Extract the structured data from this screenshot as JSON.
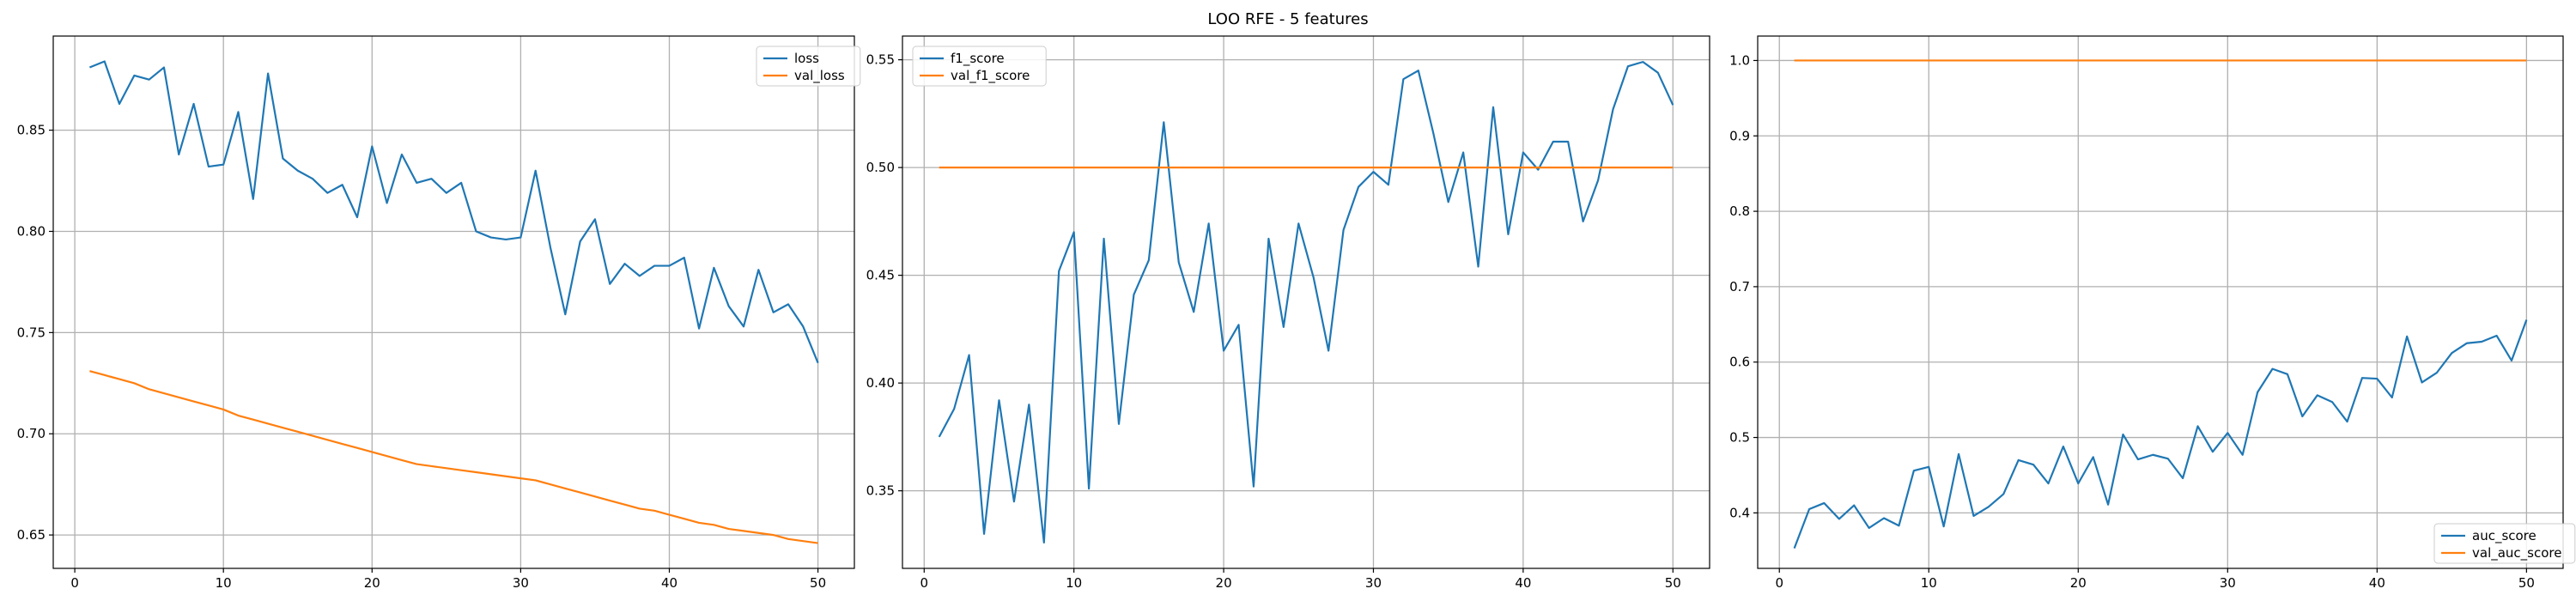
{
  "figure": {
    "title": "LOO RFE - 5 features"
  },
  "colors": {
    "series_1": "#1f77b4",
    "series_2": "#ff7f0e",
    "grid": "#b0b0b0",
    "axes": "#000000"
  },
  "chart_data": [
    {
      "type": "line",
      "title": "",
      "xlabel": "",
      "ylabel": "",
      "xlim": [
        -1.45,
        52.45
      ],
      "ylim": [
        0.6335,
        0.8965
      ],
      "xticks": [
        0,
        10,
        20,
        30,
        40,
        50
      ],
      "yticks": [
        0.65,
        0.7,
        0.75,
        0.8,
        0.85
      ],
      "ytick_labels": [
        "0.65",
        "0.70",
        "0.75",
        "0.80",
        "0.85"
      ],
      "grid": true,
      "legend_position": "upper right",
      "x": [
        1,
        2,
        3,
        4,
        5,
        6,
        7,
        8,
        9,
        10,
        11,
        12,
        13,
        14,
        15,
        16,
        17,
        18,
        19,
        20,
        21,
        22,
        23,
        24,
        25,
        26,
        27,
        28,
        29,
        30,
        31,
        32,
        33,
        34,
        35,
        36,
        37,
        38,
        39,
        40,
        41,
        42,
        43,
        44,
        45,
        46,
        47,
        48,
        49,
        50
      ],
      "series": [
        {
          "name": "loss",
          "values": [
            0.881,
            0.884,
            0.863,
            0.877,
            0.875,
            0.881,
            0.838,
            0.863,
            0.832,
            0.833,
            0.859,
            0.816,
            0.878,
            0.836,
            0.83,
            0.826,
            0.819,
            0.823,
            0.807,
            0.842,
            0.814,
            0.838,
            0.824,
            0.826,
            0.819,
            0.824,
            0.8,
            0.797,
            0.796,
            0.797,
            0.83,
            0.792,
            0.759,
            0.795,
            0.806,
            0.774,
            0.784,
            0.778,
            0.783,
            0.783,
            0.787,
            0.752,
            0.782,
            0.763,
            0.753,
            0.781,
            0.76,
            0.764,
            0.753,
            0.735
          ]
        },
        {
          "name": "val_loss",
          "values": [
            0.731,
            0.729,
            0.727,
            0.725,
            0.722,
            0.72,
            0.718,
            0.716,
            0.714,
            0.712,
            0.709,
            0.707,
            0.705,
            0.703,
            0.701,
            0.699,
            0.697,
            0.695,
            0.693,
            0.691,
            0.689,
            0.687,
            0.685,
            0.684,
            0.683,
            0.682,
            0.681,
            0.68,
            0.679,
            0.678,
            0.677,
            0.675,
            0.673,
            0.671,
            0.669,
            0.667,
            0.665,
            0.663,
            0.662,
            0.66,
            0.658,
            0.656,
            0.655,
            0.653,
            0.652,
            0.651,
            0.65,
            0.648,
            0.647,
            0.646
          ]
        }
      ]
    },
    {
      "type": "line",
      "title": "",
      "xlabel": "",
      "ylabel": "",
      "xlim": [
        -1.45,
        52.45
      ],
      "ylim": [
        0.314,
        0.561
      ],
      "xticks": [
        0,
        10,
        20,
        30,
        40,
        50
      ],
      "yticks": [
        0.35,
        0.4,
        0.45,
        0.5,
        0.55
      ],
      "ytick_labels": [
        "0.35",
        "0.40",
        "0.45",
        "0.50",
        "0.55"
      ],
      "grid": true,
      "legend_position": "upper left",
      "x": [
        1,
        2,
        3,
        4,
        5,
        6,
        7,
        8,
        9,
        10,
        11,
        12,
        13,
        14,
        15,
        16,
        17,
        18,
        19,
        20,
        21,
        22,
        23,
        24,
        25,
        26,
        27,
        28,
        29,
        30,
        31,
        32,
        33,
        34,
        35,
        36,
        37,
        38,
        39,
        40,
        41,
        42,
        43,
        44,
        45,
        46,
        47,
        48,
        49,
        50
      ],
      "series": [
        {
          "name": "f1_score",
          "values": [
            0.375,
            0.388,
            0.413,
            0.33,
            0.392,
            0.345,
            0.39,
            0.326,
            0.452,
            0.47,
            0.351,
            0.467,
            0.381,
            0.441,
            0.457,
            0.521,
            0.456,
            0.433,
            0.474,
            0.415,
            0.427,
            0.352,
            0.467,
            0.426,
            0.474,
            0.449,
            0.415,
            0.471,
            0.491,
            0.498,
            0.492,
            0.541,
            0.545,
            0.516,
            0.484,
            0.507,
            0.454,
            0.528,
            0.469,
            0.507,
            0.499,
            0.512,
            0.512,
            0.475,
            0.494,
            0.527,
            0.547,
            0.549,
            0.544,
            0.529
          ]
        },
        {
          "name": "val_f1_score",
          "values": [
            0.5,
            0.5,
            0.5,
            0.5,
            0.5,
            0.5,
            0.5,
            0.5,
            0.5,
            0.5,
            0.5,
            0.5,
            0.5,
            0.5,
            0.5,
            0.5,
            0.5,
            0.5,
            0.5,
            0.5,
            0.5,
            0.5,
            0.5,
            0.5,
            0.5,
            0.5,
            0.5,
            0.5,
            0.5,
            0.5,
            0.5,
            0.5,
            0.5,
            0.5,
            0.5,
            0.5,
            0.5,
            0.5,
            0.5,
            0.5,
            0.5,
            0.5,
            0.5,
            0.5,
            0.5,
            0.5,
            0.5,
            0.5,
            0.5,
            0.5
          ]
        }
      ]
    },
    {
      "type": "line",
      "title": "",
      "xlabel": "",
      "ylabel": "",
      "xlim": [
        -1.45,
        52.45
      ],
      "ylim": [
        0.3264,
        1.0324
      ],
      "xticks": [
        0,
        10,
        20,
        30,
        40,
        50
      ],
      "yticks": [
        0.4,
        0.5,
        0.6,
        0.7,
        0.8,
        0.9,
        1.0
      ],
      "ytick_labels": [
        "0.4",
        "0.5",
        "0.6",
        "0.7",
        "0.8",
        "0.9",
        "1.0"
      ],
      "grid": true,
      "legend_position": "lower right",
      "x": [
        1,
        2,
        3,
        4,
        5,
        6,
        7,
        8,
        9,
        10,
        11,
        12,
        13,
        14,
        15,
        16,
        17,
        18,
        19,
        20,
        21,
        22,
        23,
        24,
        25,
        26,
        27,
        28,
        29,
        30,
        31,
        32,
        33,
        34,
        35,
        36,
        37,
        38,
        39,
        40,
        41,
        42,
        43,
        44,
        45,
        46,
        47,
        48,
        49,
        50
      ],
      "series": [
        {
          "name": "auc_score",
          "values": [
            0.353,
            0.405,
            0.413,
            0.392,
            0.41,
            0.38,
            0.393,
            0.383,
            0.456,
            0.461,
            0.382,
            0.478,
            0.396,
            0.408,
            0.425,
            0.47,
            0.464,
            0.439,
            0.488,
            0.439,
            0.474,
            0.411,
            0.504,
            0.471,
            0.477,
            0.472,
            0.446,
            0.515,
            0.481,
            0.506,
            0.477,
            0.56,
            0.591,
            0.584,
            0.528,
            0.556,
            0.547,
            0.521,
            0.579,
            0.578,
            0.553,
            0.634,
            0.573,
            0.586,
            0.612,
            0.625,
            0.627,
            0.635,
            0.602,
            0.656
          ]
        },
        {
          "name": "val_auc_score",
          "values": [
            1.0,
            1.0,
            1.0,
            1.0,
            1.0,
            1.0,
            1.0,
            1.0,
            1.0,
            1.0,
            1.0,
            1.0,
            1.0,
            1.0,
            1.0,
            1.0,
            1.0,
            1.0,
            1.0,
            1.0,
            1.0,
            1.0,
            1.0,
            1.0,
            1.0,
            1.0,
            1.0,
            1.0,
            1.0,
            1.0,
            1.0,
            1.0,
            1.0,
            1.0,
            1.0,
            1.0,
            1.0,
            1.0,
            1.0,
            1.0,
            1.0,
            1.0,
            1.0,
            1.0,
            1.0,
            1.0,
            1.0,
            1.0,
            1.0,
            1.0
          ]
        }
      ]
    }
  ]
}
